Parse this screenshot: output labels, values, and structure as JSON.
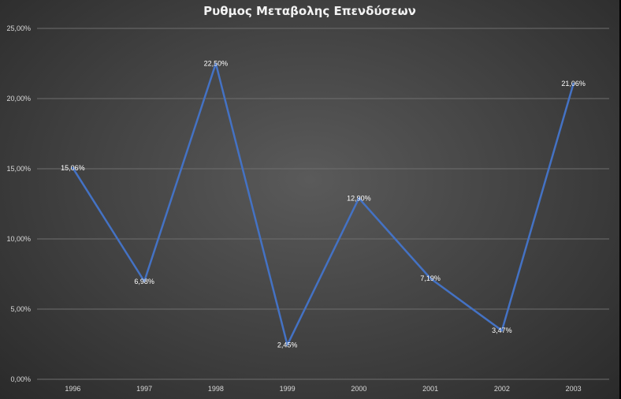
{
  "chart_data": {
    "type": "line",
    "title": "Ρυθμος Μεταβολης Επενδύσεων",
    "categories": [
      "1996",
      "1997",
      "1998",
      "1999",
      "2000",
      "2001",
      "2002",
      "2003"
    ],
    "series": [
      {
        "values": [
          15.06,
          6.98,
          22.5,
          2.45,
          12.9,
          7.19,
          3.47,
          21.06
        ],
        "labels": [
          "15,06%",
          "6,98%",
          "22,50%",
          "2,45%",
          "12,90%",
          "7,19%",
          "3,47%",
          "21,06%"
        ],
        "color": "#4472c4"
      }
    ],
    "ylim": [
      0,
      25
    ],
    "yticks": [
      {
        "value": 0,
        "label": "0,00%"
      },
      {
        "value": 5,
        "label": "5,00%"
      },
      {
        "value": 10,
        "label": "10,00%"
      },
      {
        "value": 15,
        "label": "15,00%"
      },
      {
        "value": 20,
        "label": "20,00%"
      },
      {
        "value": 25,
        "label": "25,00%"
      }
    ],
    "grid": true,
    "gridColor": "#6e6e6e",
    "legend": "none"
  }
}
